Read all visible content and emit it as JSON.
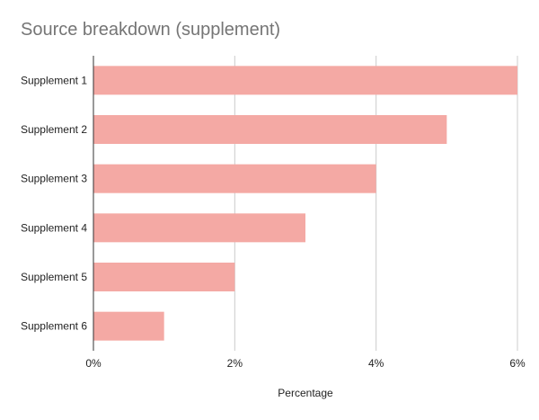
{
  "chart_data": {
    "type": "bar",
    "orientation": "horizontal",
    "title": "Source breakdown (supplement)",
    "xlabel": "Percentage",
    "ylabel": "",
    "categories": [
      "Supplement 1",
      "Supplement 2",
      "Supplement 3",
      "Supplement 4",
      "Supplement 5",
      "Supplement 6"
    ],
    "values": [
      6,
      5,
      4,
      3,
      2,
      1
    ],
    "value_unit": "%",
    "xlim": [
      0,
      6
    ],
    "xticks": [
      0,
      2,
      4,
      6
    ],
    "xtick_labels": [
      "0%",
      "2%",
      "4%",
      "6%"
    ],
    "grid": true,
    "legend": "none",
    "colors": {
      "bar": "#f4a9a4",
      "grid": "#cccccc",
      "axis": "#333333",
      "title": "#757575",
      "text": "#222222"
    }
  }
}
